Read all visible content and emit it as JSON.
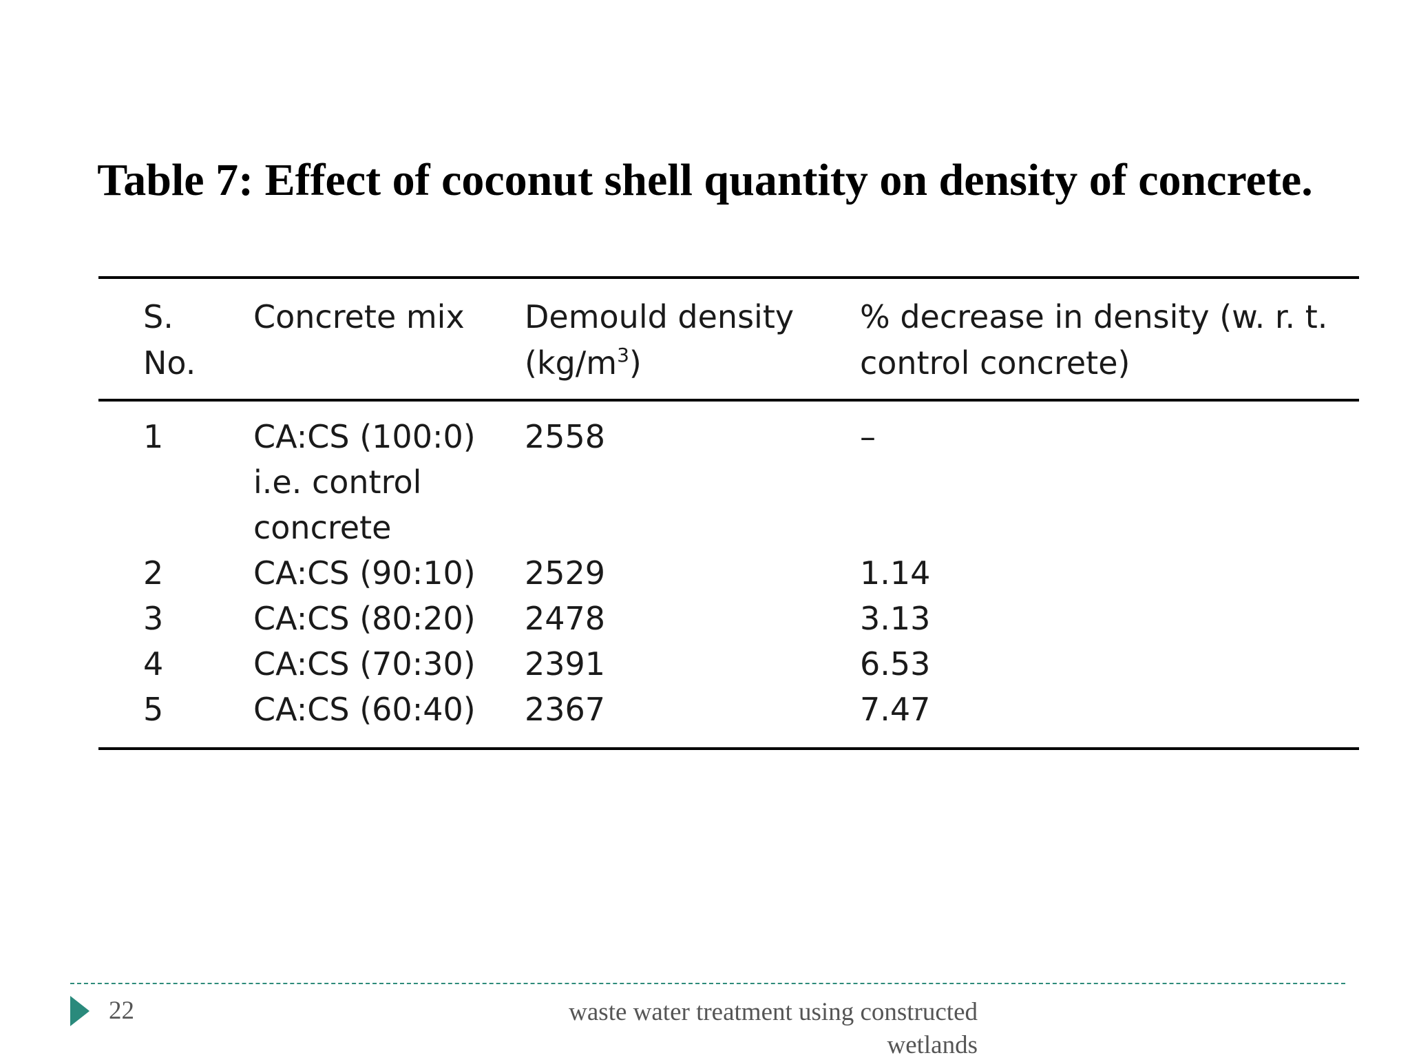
{
  "slide": {
    "title": "Table 7: Effect of coconut shell quantity on density of concrete."
  },
  "table": {
    "headers": {
      "sno_line1": "S.",
      "sno_line2": "No.",
      "mix": "Concrete mix",
      "density_line1": "Demould density",
      "density_line2_pre": "(kg/m",
      "density_sup": "3",
      "density_line2_post": ")",
      "decrease_line1": "% decrease in density (w. r. t.",
      "decrease_line2": "control concrete)"
    },
    "rows": [
      {
        "sno": "1",
        "mix_line1": "CA:CS (100:0)",
        "mix_line2": "i.e. control",
        "mix_line3": "concrete",
        "density": "2558",
        "decrease": "–"
      },
      {
        "sno": "2",
        "mix": "CA:CS (90:10)",
        "density": "2529",
        "decrease": "1.14"
      },
      {
        "sno": "3",
        "mix": "CA:CS (80:20)",
        "density": "2478",
        "decrease": "3.13"
      },
      {
        "sno": "4",
        "mix": "CA:CS (70:30)",
        "density": "2391",
        "decrease": "6.53"
      },
      {
        "sno": "5",
        "mix": "CA:CS (60:40)",
        "density": "2367",
        "decrease": "7.47"
      }
    ]
  },
  "footer": {
    "page_number": "22",
    "text_line1": "waste water treatment using constructed",
    "text_line2": "wetlands",
    "arrow_icon": "triangle-right-icon",
    "accent_color": "#2a8a7c"
  }
}
